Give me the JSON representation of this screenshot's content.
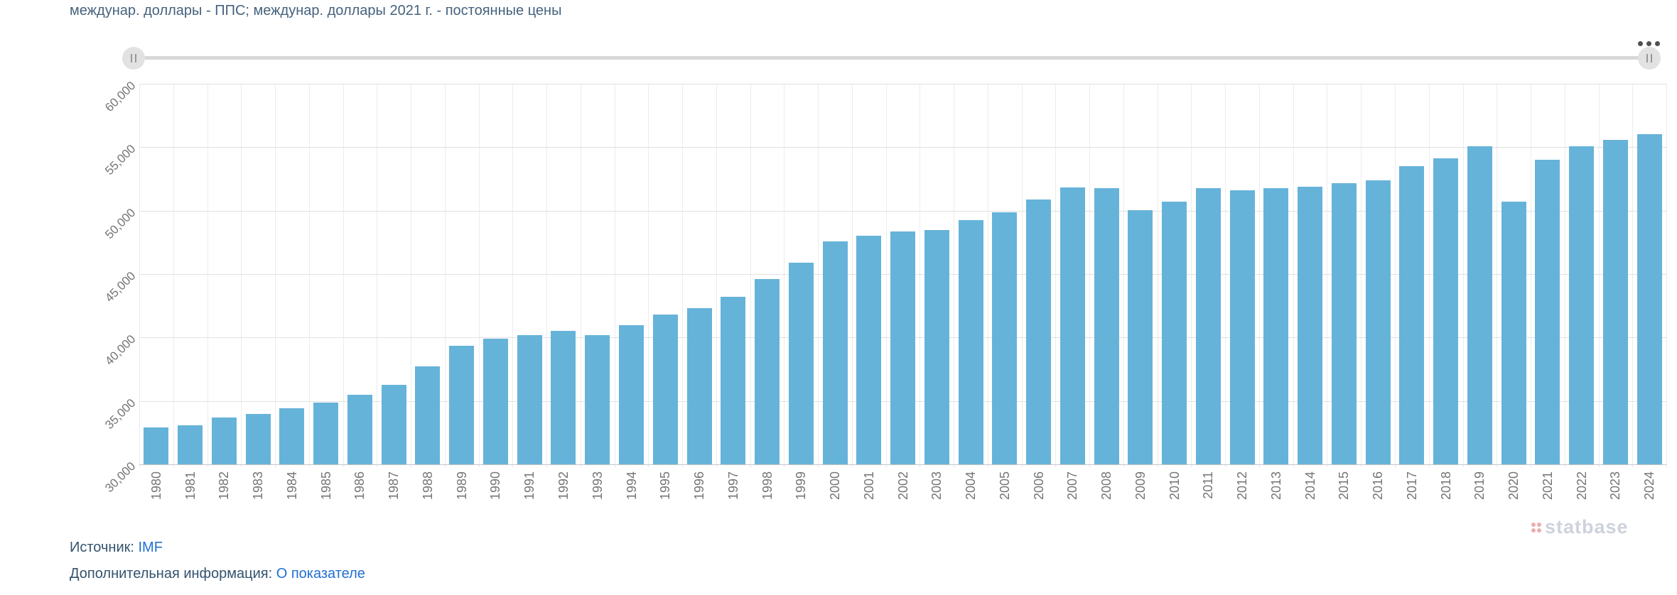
{
  "header": {
    "title": "междунар. доллары - ППС; междунар. доллары 2021 г. - постоянные цены"
  },
  "range_slider": {
    "left_handle": "drag-handle",
    "right_handle": "drag-handle",
    "menu": "ellipsis"
  },
  "chart_data": {
    "type": "bar",
    "title": "",
    "xlabel": "",
    "ylabel": "",
    "ylim": [
      30000,
      60000
    ],
    "ytick_step": 5000,
    "ytick_labels_top_down": [
      "60,000",
      "55,000",
      "50,000",
      "45,000",
      "40,000",
      "35,000",
      "30,000"
    ],
    "grid": true,
    "legend_position": "none",
    "bar_color": "#66b3d9",
    "categories": [
      "1980",
      "1981",
      "1982",
      "1983",
      "1984",
      "1985",
      "1986",
      "1987",
      "1988",
      "1989",
      "1990",
      "1991",
      "1992",
      "1993",
      "1994",
      "1995",
      "1996",
      "1997",
      "1998",
      "1999",
      "2000",
      "2001",
      "2002",
      "2003",
      "2004",
      "2005",
      "2006",
      "2007",
      "2008",
      "2009",
      "2010",
      "2011",
      "2012",
      "2013",
      "2014",
      "2015",
      "2016",
      "2017",
      "2018",
      "2019",
      "2020",
      "2021",
      "2022",
      "2023",
      "2024"
    ],
    "values": [
      32900,
      33100,
      33700,
      34000,
      34400,
      34850,
      35500,
      36250,
      37700,
      39350,
      39900,
      40200,
      40550,
      40200,
      41000,
      41800,
      42300,
      43200,
      44600,
      45900,
      47550,
      48050,
      48350,
      48500,
      49250,
      49850,
      50900,
      51850,
      51750,
      50050,
      50700,
      51750,
      51600,
      51800,
      51900,
      52150,
      52400,
      53500,
      54150,
      55050,
      50700,
      54000,
      55100,
      55600,
      56050
    ]
  },
  "watermark": {
    "text": "statbase"
  },
  "footer": {
    "source_label": "Источник:",
    "source_link": "IMF",
    "info_label": "Дополнительная информация:",
    "info_link": "О показателе"
  },
  "colors": {
    "bar": "#66b3d9",
    "link": "#2170d0",
    "title_text": "#46627d",
    "axis_label": "#757575"
  }
}
